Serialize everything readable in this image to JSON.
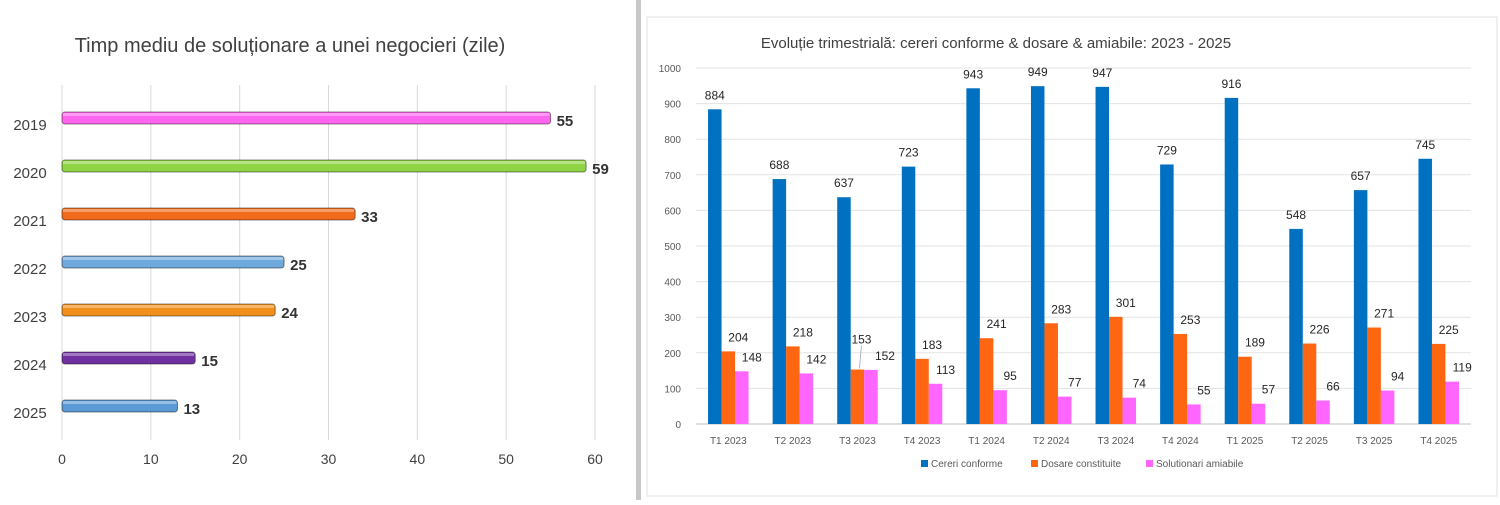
{
  "chart_data": [
    {
      "type": "bar",
      "orientation": "horizontal",
      "title": "Timp mediu de soluționare a unei negocieri (zile)",
      "categories": [
        "2019",
        "2020",
        "2021",
        "2022",
        "2023",
        "2024",
        "2025"
      ],
      "values": [
        55,
        59,
        33,
        25,
        24,
        15,
        13
      ],
      "colors": [
        "#ff66ee",
        "#8fd444",
        "#f26a1b",
        "#6fa8dc",
        "#f0901a",
        "#7030a0",
        "#5b9bd5"
      ],
      "xlim": [
        0,
        60
      ],
      "xticks": [
        0,
        10,
        20,
        30,
        40,
        50,
        60
      ],
      "grid": true
    },
    {
      "type": "bar",
      "title": "Evoluție trimestrială: cereri conforme & dosare & amiabile: 2023 - 2025",
      "categories": [
        "T1 2023",
        "T2 2023",
        "T3 2023",
        "T4 2023",
        "T1 2024",
        "T2 2024",
        "T3 2024",
        "T4 2024",
        "T1 2025",
        "T2 2025",
        "T3 2025",
        "T4 2025"
      ],
      "series": [
        {
          "name": "Cereri conforme",
          "color": "#0070c0",
          "values": [
            884,
            688,
            637,
            723,
            943,
            949,
            947,
            729,
            916,
            548,
            657,
            745
          ]
        },
        {
          "name": "Dosare constituite",
          "color": "#ff6612",
          "values": [
            204,
            218,
            153,
            183,
            241,
            283,
            301,
            253,
            189,
            226,
            271,
            225
          ]
        },
        {
          "name": "Solutionari amiabile",
          "color": "#ff66ff",
          "values": [
            148,
            142,
            152,
            113,
            95,
            77,
            74,
            55,
            57,
            66,
            94,
            119
          ]
        }
      ],
      "ylim": [
        0,
        1000
      ],
      "yticks": [
        0,
        100,
        200,
        300,
        400,
        500,
        600,
        700,
        800,
        900,
        1000
      ],
      "grid": true,
      "legend": "bottom"
    }
  ]
}
